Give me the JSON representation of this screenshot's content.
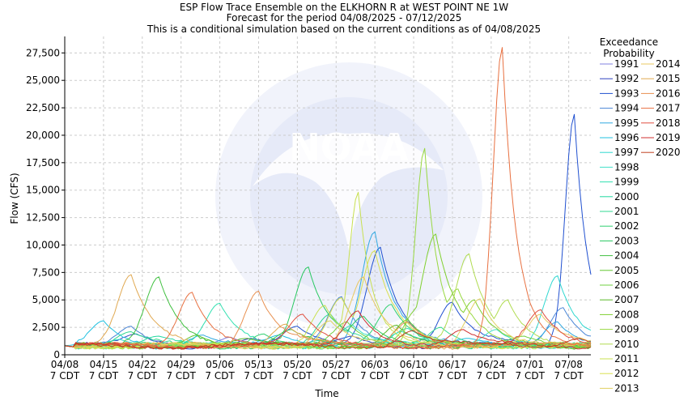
{
  "chart_data": {
    "type": "line",
    "title_lines": [
      "ESP Flow Trace Ensemble on the ELKHORN R at WEST POINT NE 1W",
      "Forecast for the period 04/08/2025 - 07/12/2025",
      "This is a conditional simulation based on the current conditions as of 04/08/2025"
    ],
    "xlabel": "Time",
    "ylabel": "Flow (CFS)",
    "ylim": [
      0,
      29000
    ],
    "xlim": [
      "2025-04-08",
      "2025-07-12"
    ],
    "y_ticks": [
      0,
      2500,
      5000,
      7500,
      10000,
      12500,
      15000,
      17500,
      20000,
      22500,
      25000,
      27500
    ],
    "y_tick_labels": [
      "0",
      "2,500",
      "5,000",
      "7,500",
      "10,000",
      "12,500",
      "15,000",
      "17,500",
      "20,000",
      "22,500",
      "25,000",
      "27,500"
    ],
    "x_ticks": [
      "2025-04-08",
      "2025-04-15",
      "2025-04-22",
      "2025-04-29",
      "2025-05-06",
      "2025-05-13",
      "2025-05-20",
      "2025-05-27",
      "2025-06-03",
      "2025-06-10",
      "2025-06-17",
      "2025-06-24",
      "2025-07-01",
      "2025-07-08"
    ],
    "x_tick_labels": [
      [
        "04/08",
        "7 CDT"
      ],
      [
        "04/15",
        "7 CDT"
      ],
      [
        "04/22",
        "7 CDT"
      ],
      [
        "04/29",
        "7 CDT"
      ],
      [
        "05/06",
        "7 CDT"
      ],
      [
        "05/13",
        "7 CDT"
      ],
      [
        "05/20",
        "7 CDT"
      ],
      [
        "05/27",
        "7 CDT"
      ],
      [
        "06/03",
        "7 CDT"
      ],
      [
        "06/10",
        "7 CDT"
      ],
      [
        "06/17",
        "7 CDT"
      ],
      [
        "06/24",
        "7 CDT"
      ],
      [
        "07/01",
        "7 CDT"
      ],
      [
        "07/08",
        "7 CDT"
      ]
    ],
    "grid": true,
    "legend_title": [
      "Exceedance",
      "Probability"
    ],
    "legend_position": "right",
    "series": [
      {
        "name": "1991",
        "color": "#8080e0",
        "peaks": [
          [
            "2025-05-08",
            1600
          ],
          [
            "2025-06-12",
            1400
          ]
        ]
      },
      {
        "name": "1992",
        "color": "#3040c0",
        "peaks": [
          [
            "2025-04-21",
            1900
          ],
          [
            "2025-05-12",
            1500
          ],
          [
            "2025-05-30",
            1700
          ]
        ]
      },
      {
        "name": "1993",
        "color": "#2050d0",
        "peaks": [
          [
            "2025-07-09",
            21900
          ],
          [
            "2025-05-20",
            2600
          ],
          [
            "2025-06-04",
            9800
          ],
          [
            "2025-06-17",
            4800
          ]
        ]
      },
      {
        "name": "1994",
        "color": "#4a86d6",
        "peaks": [
          [
            "2025-07-07",
            4300
          ],
          [
            "2025-05-28",
            5300
          ],
          [
            "2025-04-20",
            2600
          ]
        ]
      },
      {
        "name": "1995",
        "color": "#30a8e0",
        "peaks": [
          [
            "2025-06-03",
            11200
          ],
          [
            "2025-07-06",
            3000
          ],
          [
            "2025-05-03",
            1800
          ]
        ]
      },
      {
        "name": "1996",
        "color": "#20c0e0",
        "peaks": [
          [
            "2025-04-15",
            3100
          ],
          [
            "2025-05-17",
            1800
          ],
          [
            "2025-06-20",
            1500
          ]
        ]
      },
      {
        "name": "1997",
        "color": "#30d8d0",
        "peaks": [
          [
            "2025-07-06",
            7200
          ],
          [
            "2025-04-18",
            1400
          ],
          [
            "2025-06-08",
            2100
          ]
        ]
      },
      {
        "name": "1998",
        "color": "#40e0c8",
        "peaks": [
          [
            "2025-05-30",
            2700
          ],
          [
            "2025-06-25",
            2300
          ]
        ]
      },
      {
        "name": "1999",
        "color": "#30e0b0",
        "peaks": [
          [
            "2025-05-06",
            4700
          ],
          [
            "2025-06-09",
            2400
          ]
        ]
      },
      {
        "name": "2000",
        "color": "#20d8a0",
        "peaks": [
          [
            "2025-04-25",
            1700
          ],
          [
            "2025-05-24",
            1300
          ]
        ]
      },
      {
        "name": "2001",
        "color": "#30d890",
        "peaks": [
          [
            "2025-04-20",
            2100
          ],
          [
            "2025-05-26",
            3700
          ],
          [
            "2025-06-15",
            2500
          ]
        ]
      },
      {
        "name": "2002",
        "color": "#30d070",
        "peaks": [
          [
            "2025-06-06",
            4600
          ],
          [
            "2025-05-14",
            1900
          ]
        ]
      },
      {
        "name": "2003",
        "color": "#28c860",
        "peaks": [
          [
            "2025-05-22",
            8000
          ],
          [
            "2025-06-01",
            3500
          ]
        ]
      },
      {
        "name": "2004",
        "color": "#40c040",
        "peaks": [
          [
            "2025-04-25",
            7100
          ],
          [
            "2025-05-19",
            2300
          ]
        ]
      },
      {
        "name": "2005",
        "color": "#60c830",
        "peaks": [
          [
            "2025-06-09",
            3200
          ],
          [
            "2025-05-02",
            1800
          ]
        ]
      },
      {
        "name": "2006",
        "color": "#70d040",
        "peaks": [
          [
            "2025-05-29",
            3000
          ],
          [
            "2025-06-30",
            1700
          ]
        ]
      },
      {
        "name": "2007",
        "color": "#58b828",
        "peaks": [
          [
            "2025-06-07",
            2700
          ],
          [
            "2025-05-11",
            1500
          ]
        ]
      },
      {
        "name": "2008",
        "color": "#80d030",
        "peaks": [
          [
            "2025-06-11",
            4300
          ],
          [
            "2025-06-14",
            11000
          ],
          [
            "2025-06-21",
            5000
          ]
        ]
      },
      {
        "name": "2009",
        "color": "#98d840",
        "peaks": [
          [
            "2025-06-12",
            18800
          ],
          [
            "2025-06-18",
            6000
          ]
        ]
      },
      {
        "name": "2010",
        "color": "#b0dc50",
        "peaks": [
          [
            "2025-06-20",
            9200
          ],
          [
            "2025-06-27",
            5000
          ]
        ]
      },
      {
        "name": "2011",
        "color": "#c8e050",
        "peaks": [
          [
            "2025-05-31",
            14800
          ],
          [
            "2025-05-25",
            4500
          ]
        ]
      },
      {
        "name": "2012",
        "color": "#d8e050",
        "peaks": [
          [
            "2025-05-28",
            5200
          ],
          [
            "2025-06-03",
            9500
          ]
        ]
      },
      {
        "name": "2013",
        "color": "#e0d060",
        "peaks": [
          [
            "2025-06-22",
            5100
          ],
          [
            "2025-05-26",
            3100
          ]
        ]
      },
      {
        "name": "2014",
        "color": "#e8c860",
        "peaks": [
          [
            "2025-06-01",
            7100
          ],
          [
            "2025-07-03",
            3700
          ]
        ]
      },
      {
        "name": "2015",
        "color": "#e0a850",
        "peaks": [
          [
            "2025-04-20",
            7300
          ],
          [
            "2025-05-18",
            2800
          ]
        ]
      },
      {
        "name": "2016",
        "color": "#e89050",
        "peaks": [
          [
            "2025-05-13",
            5800
          ],
          [
            "2025-06-09",
            3000
          ]
        ]
      },
      {
        "name": "2017",
        "color": "#e87040",
        "peaks": [
          [
            "2025-06-26",
            28000
          ],
          [
            "2025-05-01",
            5700
          ]
        ]
      },
      {
        "name": "2018",
        "color": "#e05040",
        "peaks": [
          [
            "2025-05-21",
            3700
          ],
          [
            "2025-07-03",
            4100
          ]
        ]
      },
      {
        "name": "2019",
        "color": "#d03030",
        "peaks": [
          [
            "2025-05-31",
            4000
          ],
          [
            "2025-06-19",
            2300
          ]
        ]
      },
      {
        "name": "2020",
        "color": "#c04020",
        "peaks": [
          [
            "2025-06-10",
            2200
          ],
          [
            "2025-07-10",
            1500
          ]
        ]
      }
    ]
  }
}
